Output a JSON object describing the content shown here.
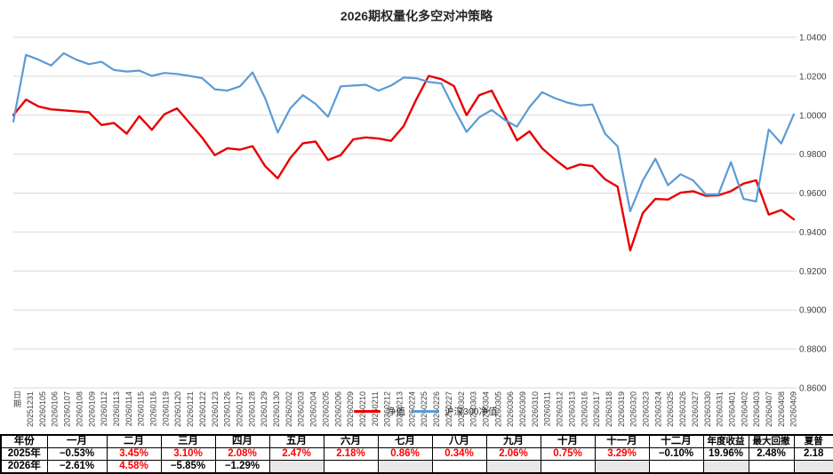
{
  "title": "2026期权量化多空对冲策略",
  "chart_data": {
    "type": "line",
    "x_axis_title": "日期",
    "categories": [
      "20251231",
      "20260105",
      "20260106",
      "20260107",
      "20260108",
      "20260109",
      "20260112",
      "20260113",
      "20260114",
      "20260115",
      "20260116",
      "20260119",
      "20260120",
      "20260121",
      "20260122",
      "20260123",
      "20260126",
      "20260127",
      "20260128",
      "20260129",
      "20260130",
      "20260202",
      "20260203",
      "20260204",
      "20260205",
      "20260206",
      "20260209",
      "20260210",
      "20260211",
      "20260212",
      "20260213",
      "20260224",
      "20260225",
      "20260226",
      "20260227",
      "20260302",
      "20260303",
      "20260304",
      "20260305",
      "20260306",
      "20260309",
      "20260310",
      "20260311",
      "20260312",
      "20260313",
      "20260316",
      "20260317",
      "20260318",
      "20260319",
      "20260320",
      "20260323",
      "20260324",
      "20260325",
      "20260326",
      "20260327",
      "20260330",
      "20260331",
      "20260401",
      "20260402",
      "20260403",
      "20260407",
      "20260408",
      "20260409"
    ],
    "series": [
      {
        "name": "净值",
        "color": "#e80000",
        "values": [
          1.0,
          1.008,
          1.0045,
          1.003,
          1.0025,
          1.002,
          1.0015,
          0.995,
          0.996,
          0.9905,
          0.9995,
          0.9925,
          1.0005,
          1.0035,
          0.996,
          0.9885,
          0.9795,
          0.983,
          0.9823,
          0.9841,
          0.9739,
          0.9676,
          0.978,
          0.9856,
          0.9865,
          0.977,
          0.9795,
          0.9876,
          0.9886,
          0.988,
          0.9868,
          0.9944,
          1.008,
          1.0202,
          1.0185,
          1.015,
          1.0,
          1.0103,
          1.0126,
          1.0,
          0.9871,
          0.9917,
          0.983,
          0.9774,
          0.9724,
          0.9747,
          0.9739,
          0.9671,
          0.9633,
          0.9306,
          0.9498,
          0.957,
          0.9567,
          0.9602,
          0.961,
          0.9586,
          0.9589,
          0.961,
          0.9649,
          0.9666,
          0.949,
          0.9513,
          0.9465
        ]
      },
      {
        "name": "沪深300净值",
        "color": "#5b9bd5",
        "values": [
          0.9967,
          1.031,
          1.0285,
          1.0255,
          1.0318,
          1.0285,
          1.0262,
          1.0274,
          1.0232,
          1.0224,
          1.0229,
          1.0202,
          1.0217,
          1.0212,
          1.0202,
          1.019,
          1.0133,
          1.0126,
          1.0148,
          1.022,
          1.0088,
          0.9911,
          1.0035,
          1.0103,
          1.0058,
          0.9992,
          1.0148,
          1.0152,
          1.0156,
          1.0126,
          1.0152,
          1.0193,
          1.019,
          1.0171,
          1.0163,
          1.0035,
          0.9914,
          0.9989,
          1.0027,
          0.9977,
          0.9941,
          1.0042,
          1.0118,
          1.0088,
          1.0065,
          1.005,
          1.0055,
          0.9905,
          0.984,
          0.9507,
          0.9665,
          0.9776,
          0.9641,
          0.9697,
          0.9665,
          0.9593,
          0.9593,
          0.9759,
          0.957,
          0.9557,
          0.9927,
          0.9855,
          1.0005
        ]
      }
    ],
    "ylim": [
      0.86,
      1.04
    ],
    "y_ticks": [
      "1.0400",
      "1.0200",
      "1.0000",
      "0.9800",
      "0.9600",
      "0.9400",
      "0.9200",
      "0.9000",
      "0.8800",
      "0.8600"
    ],
    "grid": true,
    "legend_position": "bottom-center"
  },
  "table": {
    "headers": [
      "年份",
      "一月",
      "二月",
      "三月",
      "四月",
      "五月",
      "六月",
      "七月",
      "八月",
      "九月",
      "十月",
      "十一月",
      "十二月",
      "年度收益",
      "最大回撤",
      "夏普"
    ],
    "rows": [
      {
        "label": "2025年",
        "cells": [
          {
            "t": "−0.53%",
            "c": "black"
          },
          {
            "t": "3.45%",
            "c": "red"
          },
          {
            "t": "3.10%",
            "c": "red"
          },
          {
            "t": "2.08%",
            "c": "red"
          },
          {
            "t": "2.47%",
            "c": "red"
          },
          {
            "t": "2.18%",
            "c": "red"
          },
          {
            "t": "0.86%",
            "c": "red"
          },
          {
            "t": "0.34%",
            "c": "red"
          },
          {
            "t": "2.06%",
            "c": "red"
          },
          {
            "t": "0.75%",
            "c": "red"
          },
          {
            "t": "3.29%",
            "c": "red"
          },
          {
            "t": "−0.10%",
            "c": "black"
          },
          {
            "t": "19.96%",
            "c": "black"
          },
          {
            "t": "2.48%",
            "c": "black"
          },
          {
            "t": "2.18",
            "c": "black"
          }
        ]
      },
      {
        "label": "2026年",
        "cells": [
          {
            "t": "−2.61%",
            "c": "black"
          },
          {
            "t": "4.58%",
            "c": "red"
          },
          {
            "t": "−5.85%",
            "c": "black"
          },
          {
            "t": "−1.29%",
            "c": "black"
          },
          {
            "t": "",
            "c": "black",
            "bg": "gray"
          },
          {
            "t": "",
            "c": "black"
          },
          {
            "t": "",
            "c": "black",
            "bg": "gray"
          },
          {
            "t": "",
            "c": "black"
          },
          {
            "t": "",
            "c": "black",
            "bg": "gray"
          },
          {
            "t": "",
            "c": "black"
          },
          {
            "t": "",
            "c": "black",
            "bg": "gray"
          },
          {
            "t": "",
            "c": "black"
          },
          {
            "t": "",
            "c": "black",
            "bg": "gray"
          },
          {
            "t": "",
            "c": "black"
          },
          {
            "t": "",
            "c": "black",
            "bg": "gray"
          }
        ]
      }
    ]
  }
}
